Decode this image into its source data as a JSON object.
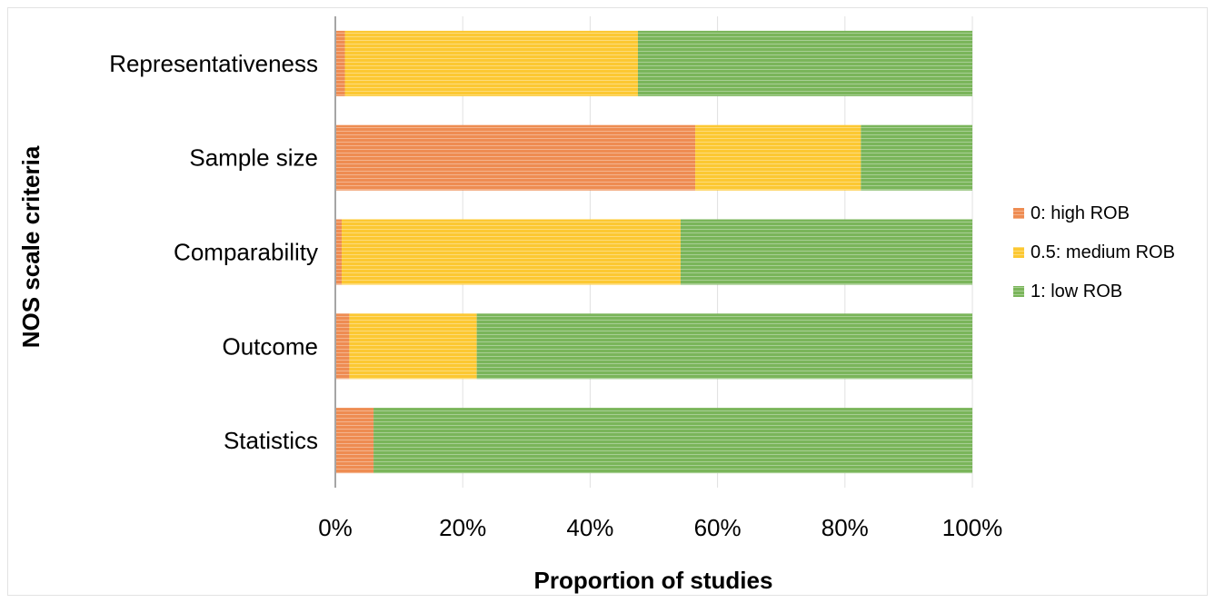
{
  "chart_data": {
    "type": "bar",
    "orientation": "horizontal",
    "stacked": "percent",
    "categories": [
      "Representativeness",
      "Sample size",
      "Comparability",
      "Outcome",
      "Statistics"
    ],
    "series": [
      {
        "name": "0: high ROB",
        "color": "#ee8c52",
        "values": [
          1.5,
          56.5,
          1.0,
          2.2,
          6.0
        ]
      },
      {
        "name": "0.5: medium ROB",
        "color": "#fcc832",
        "values": [
          46.0,
          26.0,
          53.2,
          20.0,
          0.0
        ]
      },
      {
        "name": "1: low ROB",
        "color": "#7ab55a",
        "values": [
          52.5,
          17.5,
          45.8,
          77.8,
          94.0
        ]
      }
    ],
    "xlabel": "Proportion of studies",
    "ylabel": "NOS scale criteria",
    "xlim": [
      0,
      100
    ],
    "x_ticks": [
      "0%",
      "20%",
      "40%",
      "60%",
      "80%",
      "100%"
    ],
    "grid": "vertical",
    "legend_position": "right"
  }
}
